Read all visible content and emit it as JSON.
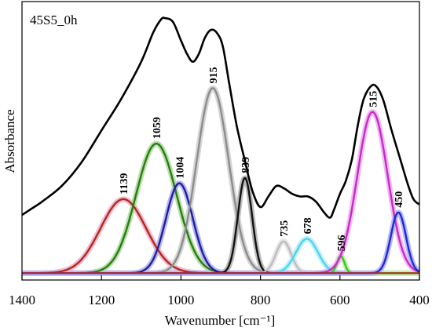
{
  "chart_data": {
    "type": "line",
    "title": "45S5_0h",
    "xlabel": "Wavenumber [cm⁻¹]",
    "ylabel": "Absorbance",
    "xlim": [
      1400,
      400
    ],
    "x_reversed": true,
    "ylim": [
      0,
      1
    ],
    "grid": false,
    "x_ticks": [
      "1400",
      "1200",
      "1000",
      "800",
      "600",
      "400"
    ],
    "measured_spectrum": {
      "color": "#000000",
      "points": [
        [
          1400,
          0.24
        ],
        [
          1380,
          0.26
        ],
        [
          1350,
          0.29
        ],
        [
          1300,
          0.35
        ],
        [
          1250,
          0.44
        ],
        [
          1200,
          0.56
        ],
        [
          1150,
          0.68
        ],
        [
          1100,
          0.82
        ],
        [
          1070,
          0.93
        ],
        [
          1050,
          0.98
        ],
        [
          1040,
          0.985
        ],
        [
          1020,
          0.97
        ],
        [
          1000,
          0.9
        ],
        [
          985,
          0.85
        ],
        [
          970,
          0.82
        ],
        [
          955,
          0.85
        ],
        [
          940,
          0.91
        ],
        [
          925,
          0.94
        ],
        [
          910,
          0.93
        ],
        [
          895,
          0.88
        ],
        [
          880,
          0.75
        ],
        [
          860,
          0.58
        ],
        [
          840,
          0.45
        ],
        [
          820,
          0.33
        ],
        [
          800,
          0.27
        ],
        [
          780,
          0.31
        ],
        [
          760,
          0.35
        ],
        [
          740,
          0.34
        ],
        [
          720,
          0.32
        ],
        [
          700,
          0.31
        ],
        [
          680,
          0.31
        ],
        [
          660,
          0.29
        ],
        [
          640,
          0.25
        ],
        [
          625,
          0.23
        ],
        [
          615,
          0.26
        ],
        [
          600,
          0.32
        ],
        [
          585,
          0.37
        ],
        [
          570,
          0.45
        ],
        [
          555,
          0.58
        ],
        [
          540,
          0.68
        ],
        [
          520,
          0.73
        ],
        [
          505,
          0.72
        ],
        [
          490,
          0.67
        ],
        [
          470,
          0.56
        ],
        [
          450,
          0.46
        ],
        [
          430,
          0.36
        ],
        [
          415,
          0.3
        ],
        [
          400,
          0.28
        ]
      ]
    },
    "baseline": 0.02,
    "series": [
      {
        "peak_label": "1139",
        "center": 1145,
        "height": 0.28,
        "fwhm": 135,
        "color": "#b02a1a",
        "halo": "#f2b8d0"
      },
      {
        "peak_label": "1059",
        "center": 1062,
        "height": 0.49,
        "fwhm": 120,
        "color": "#2a7a16",
        "halo": "#b8e0a8"
      },
      {
        "peak_label": "1004",
        "center": 1004,
        "height": 0.34,
        "fwhm": 80,
        "color": "#1f1f9c",
        "halo": "#b8b8ee"
      },
      {
        "peak_label": "915",
        "center": 920,
        "height": 0.7,
        "fwhm": 95,
        "color": "#8c8c8c",
        "halo": "#d6d6d6"
      },
      {
        "peak_label": "839",
        "center": 839,
        "height": 0.36,
        "fwhm": 42,
        "color": "#111111",
        "halo": "#bbbbbb"
      },
      {
        "peak_label": "735",
        "center": 742,
        "height": 0.12,
        "fwhm": 45,
        "color": "#bdbdbd",
        "halo": "#e6e6e6"
      },
      {
        "peak_label": "678",
        "center": 683,
        "height": 0.13,
        "fwhm": 65,
        "color": "#4fd4f0",
        "halo": "#bdf0fa"
      },
      {
        "peak_label": "596",
        "center": 598,
        "height": 0.065,
        "fwhm": 22,
        "color": "#3cc21f",
        "halo": "#c4f0b4"
      },
      {
        "peak_label": "515",
        "center": 518,
        "height": 0.61,
        "fwhm": 90,
        "color": "#c22ec2",
        "halo": "#f4b8f4"
      },
      {
        "peak_label": "450",
        "center": 453,
        "height": 0.23,
        "fwhm": 45,
        "color": "#1f28d6",
        "halo": "#b8bcf4"
      }
    ]
  }
}
